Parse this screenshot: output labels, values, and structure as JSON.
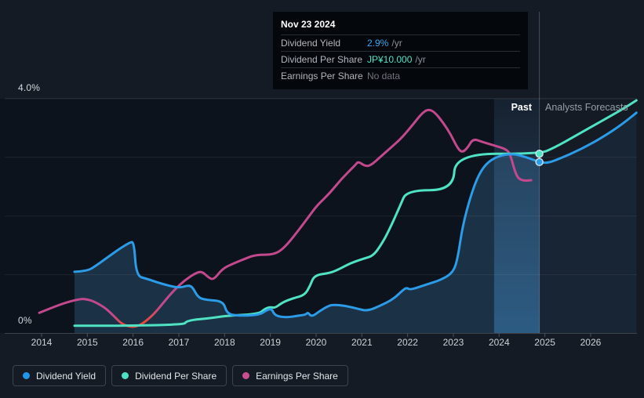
{
  "tooltip": {
    "date": "Nov 23 2024",
    "rows": [
      {
        "name": "dividend-yield",
        "label": "Dividend Yield",
        "value": "2.9%",
        "suffix": "/yr",
        "value_color": "#3ba6f2"
      },
      {
        "name": "dividend-per-share",
        "label": "Dividend Per Share",
        "value": "JP¥10.000",
        "suffix": "/yr",
        "value_color": "#4fe3c5"
      },
      {
        "name": "earnings-per-share",
        "label": "Earnings Per Share",
        "value": "No data",
        "suffix": "",
        "value_color": "#6e757d"
      }
    ]
  },
  "chart": {
    "past_label": "Past",
    "forecasts_label": "Analysts Forecasts",
    "y_axis": {
      "max_label": "4.0%",
      "min_label": "0%"
    },
    "x_axis": {
      "years": [
        "2014",
        "2015",
        "2016",
        "2017",
        "2018",
        "2019",
        "2020",
        "2021",
        "2022",
        "2023",
        "2024",
        "2025",
        "2026"
      ]
    }
  },
  "legend": [
    {
      "name": "dividend-yield",
      "label": "Dividend Yield",
      "color": "#2196e8"
    },
    {
      "name": "dividend-per-share",
      "label": "Dividend Per Share",
      "color": "#4ee0c5"
    },
    {
      "name": "earnings-per-share",
      "label": "Earnings Per Share",
      "color": "#cb4f90"
    }
  ],
  "colors": {
    "page_bg": "#151b24",
    "plot_bg": "#0d131c",
    "yield_line": "#2d9ce8",
    "yield_fill": "rgba(56,118,168,0.30)",
    "yield_fill_forecast": "rgba(56,118,168,0.12)",
    "dps_line": "#4fe3c4",
    "eps_line": "#c2498d",
    "eps_negative": "#e5483c",
    "grid": "rgba(255,255,255,0.07)",
    "grid_top": "rgba(255,255,255,0.12)",
    "axis": "rgba(255,255,255,0.18)",
    "tick": "#4a5362",
    "divider": "rgba(190,210,230,0.30)",
    "forecast_wash": "rgba(150,180,215,0.05)",
    "band_top": "rgba(100,160,220,0.10)",
    "band_bottom": "rgba(70,150,215,0.42)",
    "marker_ring": "rgba(220,235,245,0.9)"
  },
  "chart_data": {
    "type": "line",
    "title": "Dividend yield history and analyst forecast",
    "x_range": [
      2013.8,
      2027.0
    ],
    "y_axis_percent": {
      "min": 0,
      "max": 4,
      "gridlines": [
        0,
        1,
        2,
        3,
        4
      ]
    },
    "legend_position": "bottom-left",
    "forecast_start": 2024.88,
    "highlight_band": [
      2023.89,
      2024.88
    ],
    "hover": {
      "date": "Nov 23 2024",
      "dividend_yield_pct": 2.9,
      "dividend_per_share": "JP¥10.000",
      "earnings_per_share": null
    },
    "series": [
      {
        "name": "Dividend Yield",
        "unit": "%",
        "area": true,
        "marker_at": [
          2024.88,
          2.92
        ],
        "points": [
          [
            2014.72,
            1.05
          ],
          [
            2015.0,
            1.06
          ],
          [
            2015.2,
            1.16
          ],
          [
            2015.45,
            1.3
          ],
          [
            2015.7,
            1.44
          ],
          [
            2015.93,
            1.55
          ],
          [
            2016.02,
            1.56
          ],
          [
            2016.07,
            0.98
          ],
          [
            2016.3,
            0.93
          ],
          [
            2016.6,
            0.85
          ],
          [
            2017.0,
            0.77
          ],
          [
            2017.2,
            0.82
          ],
          [
            2017.3,
            0.79
          ],
          [
            2017.42,
            0.61
          ],
          [
            2017.6,
            0.57
          ],
          [
            2017.97,
            0.55
          ],
          [
            2018.05,
            0.34
          ],
          [
            2018.25,
            0.3
          ],
          [
            2018.75,
            0.31
          ],
          [
            2018.93,
            0.4
          ],
          [
            2019.03,
            0.42
          ],
          [
            2019.1,
            0.3
          ],
          [
            2019.35,
            0.27
          ],
          [
            2019.6,
            0.3
          ],
          [
            2019.78,
            0.32
          ],
          [
            2019.82,
            0.36
          ],
          [
            2019.9,
            0.28
          ],
          [
            2020.08,
            0.38
          ],
          [
            2020.25,
            0.46
          ],
          [
            2020.36,
            0.49
          ],
          [
            2020.65,
            0.47
          ],
          [
            2020.9,
            0.42
          ],
          [
            2021.12,
            0.38
          ],
          [
            2021.4,
            0.47
          ],
          [
            2021.68,
            0.58
          ],
          [
            2021.9,
            0.74
          ],
          [
            2021.98,
            0.78
          ],
          [
            2022.06,
            0.74
          ],
          [
            2022.4,
            0.83
          ],
          [
            2022.73,
            0.91
          ],
          [
            2023.0,
            1.04
          ],
          [
            2023.1,
            1.3
          ],
          [
            2023.2,
            1.82
          ],
          [
            2023.38,
            2.35
          ],
          [
            2023.56,
            2.72
          ],
          [
            2023.76,
            2.93
          ],
          [
            2024.05,
            3.04
          ],
          [
            2024.33,
            3.06
          ],
          [
            2024.6,
            3.0
          ],
          [
            2024.88,
            2.92
          ],
          [
            2025.05,
            2.9
          ],
          [
            2025.3,
            2.97
          ],
          [
            2025.8,
            3.14
          ],
          [
            2026.3,
            3.36
          ],
          [
            2026.7,
            3.57
          ],
          [
            2027.0,
            3.76
          ]
        ]
      },
      {
        "name": "Dividend Per Share",
        "unit": "JP¥ (overlaid scale)",
        "latest_value": "JP¥10.000 /yr",
        "marker_at": [
          2024.88,
          3.06
        ],
        "points": [
          [
            2014.72,
            0.13
          ],
          [
            2017.1,
            0.13
          ],
          [
            2017.17,
            0.22
          ],
          [
            2017.7,
            0.26
          ],
          [
            2018.05,
            0.3
          ],
          [
            2018.75,
            0.33
          ],
          [
            2018.88,
            0.42
          ],
          [
            2019.0,
            0.45
          ],
          [
            2019.1,
            0.43
          ],
          [
            2019.27,
            0.53
          ],
          [
            2019.5,
            0.6
          ],
          [
            2019.75,
            0.65
          ],
          [
            2019.87,
            0.81
          ],
          [
            2019.96,
            0.99
          ],
          [
            2020.3,
            1.03
          ],
          [
            2020.47,
            1.08
          ],
          [
            2020.76,
            1.2
          ],
          [
            2021.07,
            1.28
          ],
          [
            2021.24,
            1.32
          ],
          [
            2021.4,
            1.48
          ],
          [
            2021.58,
            1.73
          ],
          [
            2021.84,
            2.18
          ],
          [
            2021.98,
            2.44
          ],
          [
            2023.0,
            2.44
          ],
          [
            2023.04,
            3.06
          ],
          [
            2024.88,
            3.06
          ],
          [
            2025.2,
            3.16
          ],
          [
            2025.7,
            3.38
          ],
          [
            2026.2,
            3.6
          ],
          [
            2026.7,
            3.82
          ],
          [
            2027.0,
            3.97
          ]
        ]
      },
      {
        "name": "Earnings Per Share",
        "unit": "overlaid scale",
        "negative_span": [
          2015.55,
          2016.38
        ],
        "points": [
          [
            2013.95,
            0.35
          ],
          [
            2014.2,
            0.43
          ],
          [
            2014.55,
            0.53
          ],
          [
            2014.86,
            0.59
          ],
          [
            2015.01,
            0.58
          ],
          [
            2015.18,
            0.53
          ],
          [
            2015.4,
            0.43
          ],
          [
            2015.6,
            0.28
          ],
          [
            2015.75,
            0.16
          ],
          [
            2015.95,
            0.11
          ],
          [
            2016.1,
            0.12
          ],
          [
            2016.27,
            0.2
          ],
          [
            2016.47,
            0.34
          ],
          [
            2016.69,
            0.55
          ],
          [
            2016.9,
            0.74
          ],
          [
            2017.12,
            0.9
          ],
          [
            2017.35,
            1.02
          ],
          [
            2017.5,
            1.06
          ],
          [
            2017.65,
            0.95
          ],
          [
            2017.76,
            0.91
          ],
          [
            2017.95,
            1.1
          ],
          [
            2018.19,
            1.19
          ],
          [
            2018.44,
            1.27
          ],
          [
            2018.67,
            1.34
          ],
          [
            2019.09,
            1.34
          ],
          [
            2019.32,
            1.47
          ],
          [
            2019.57,
            1.71
          ],
          [
            2019.83,
            1.98
          ],
          [
            2020.02,
            2.18
          ],
          [
            2020.3,
            2.39
          ],
          [
            2020.55,
            2.63
          ],
          [
            2020.86,
            2.87
          ],
          [
            2020.92,
            2.93
          ],
          [
            2021.07,
            2.85
          ],
          [
            2021.19,
            2.86
          ],
          [
            2021.41,
            3.01
          ],
          [
            2021.67,
            3.19
          ],
          [
            2021.87,
            3.33
          ],
          [
            2022.13,
            3.57
          ],
          [
            2022.3,
            3.74
          ],
          [
            2022.44,
            3.82
          ],
          [
            2022.58,
            3.78
          ],
          [
            2022.78,
            3.59
          ],
          [
            2022.95,
            3.38
          ],
          [
            2023.09,
            3.16
          ],
          [
            2023.19,
            3.08
          ],
          [
            2023.31,
            3.16
          ],
          [
            2023.43,
            3.32
          ],
          [
            2023.64,
            3.26
          ],
          [
            2023.9,
            3.2
          ],
          [
            2024.15,
            3.14
          ],
          [
            2024.24,
            3.06
          ],
          [
            2024.33,
            2.8
          ],
          [
            2024.41,
            2.64
          ],
          [
            2024.55,
            2.6
          ],
          [
            2024.7,
            2.61
          ]
        ]
      }
    ]
  }
}
